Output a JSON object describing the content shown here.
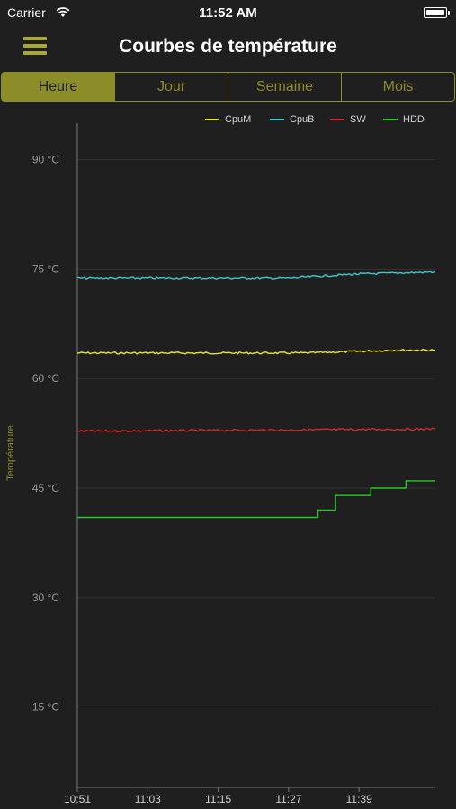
{
  "status": {
    "carrier": "Carrier",
    "time": "11:52 AM"
  },
  "nav": {
    "title": "Courbes de température"
  },
  "tabs": [
    {
      "label": "Heure",
      "active": true
    },
    {
      "label": "Jour",
      "active": false
    },
    {
      "label": "Semaine",
      "active": false
    },
    {
      "label": "Mois",
      "active": false
    }
  ],
  "colors": {
    "accent": "#8c8c28",
    "background": "#1f1f1f"
  },
  "chart_data": {
    "type": "line",
    "ylabel": "Température",
    "ylim": [
      4,
      95
    ],
    "yticks": [
      15,
      30,
      45,
      60,
      75,
      90
    ],
    "ytick_labels": [
      "15 °C",
      "30 °C",
      "45 °C",
      "60 °C",
      "75 °C",
      "90 °C"
    ],
    "xlim": [
      "10:51",
      "11:52"
    ],
    "xticks": [
      "10:51",
      "11:03",
      "11:15",
      "11:27",
      "11:39"
    ],
    "legend_position": "top-right",
    "grid": true,
    "series": [
      {
        "name": "CpuM",
        "color": "#e6e632",
        "x": [
          "10:51",
          "11:30",
          "11:45",
          "11:52"
        ],
        "y": [
          63.5,
          63.5,
          63.9,
          63.9
        ]
      },
      {
        "name": "CpuB",
        "color": "#3cc8d2",
        "x": [
          "10:51",
          "11:27",
          "11:38",
          "11:52"
        ],
        "y": [
          73.8,
          73.8,
          74.3,
          74.6
        ]
      },
      {
        "name": "SW",
        "color": "#d22828",
        "x": [
          "10:51",
          "11:52"
        ],
        "y": [
          52.8,
          53.1
        ]
      },
      {
        "name": "HDD",
        "color": "#28c828",
        "x": [
          "10:51",
          "11:32",
          "11:32",
          "11:35",
          "11:35",
          "11:41",
          "11:41",
          "11:47",
          "11:47",
          "11:52"
        ],
        "y": [
          41,
          41,
          42,
          42,
          44,
          44,
          45,
          45,
          46,
          46
        ]
      }
    ]
  }
}
